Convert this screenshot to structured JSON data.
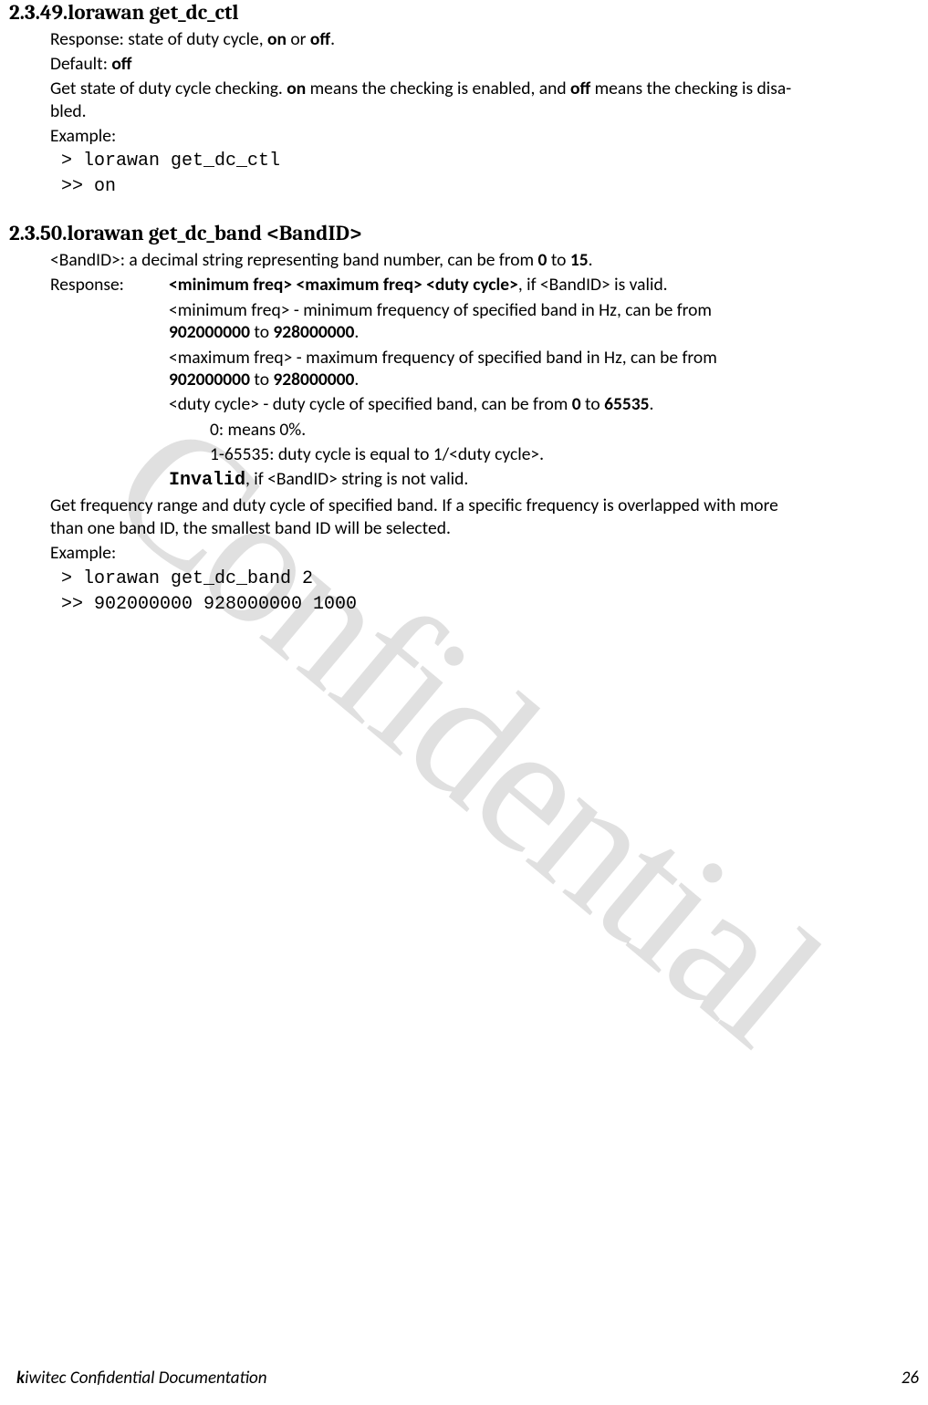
{
  "watermark": "Confidential",
  "sec49": {
    "num": "2.3.49.",
    "title": "lorawan get_dc_ctl",
    "response_label": "Response: state of duty cycle, ",
    "response_on": "on",
    "response_or": " or ",
    "response_off": "off",
    "response_period": ".",
    "default_label": "Default: ",
    "default_val": "off",
    "desc_a": "Get state of duty cycle checking. ",
    "desc_on": "on",
    "desc_b": " means the checking is enabled, and ",
    "desc_off": "off",
    "desc_c": " means the checking is disa-",
    "desc_d": "bled.",
    "example_label": "Example:",
    "ex1": "> lorawan get_dc_ctl",
    "ex2": ">> on"
  },
  "sec50": {
    "num": "2.3.50.",
    "title": "lorawan get_dc_band <BandID>",
    "bandid_a": "<BandID>: a decimal string representing band number, can be from ",
    "bandid_0": "0",
    "bandid_to": " to ",
    "bandid_15": "15",
    "bandid_dot": ".",
    "resp_label": "Response:",
    "resp_main_a": "<minimum freq> <maximum freq> <duty cycle>",
    "resp_main_b": ", if <BandID> is valid.",
    "min_a": "<minimum freq> - minimum frequency of specified band in Hz, can be from",
    "min_b1": "902000000",
    "min_to": " to ",
    "min_b2": "928000000",
    "min_dot": ".",
    "max_a": "<maximum freq> - maximum frequency of specified band in Hz, can be from",
    "max_b1": "902000000",
    "max_to": " to ",
    "max_b2": "928000000",
    "max_dot": ".",
    "duty_a": "<duty cycle> - duty cycle of specified band, can be from ",
    "duty_0": "0",
    "duty_to": " to ",
    "duty_65535": "65535",
    "duty_dot": ".",
    "duty_zero": "0: means 0%.",
    "duty_range": "1-65535: duty cycle is equal to 1/<duty cycle>.",
    "invalid_a": "Invalid",
    "invalid_b": ", if <BandID> string is not valid.",
    "desc2_a": "Get frequency range and duty cycle of specified band. If a specific frequency is overlapped with more",
    "desc2_b": "than one band ID, the smallest band ID will be selected.",
    "example_label": "Example:",
    "ex1": "> lorawan get_dc_band 2",
    "ex2": ">> 902000000 928000000 1000"
  },
  "footer": {
    "brand": "k",
    "rest": "iwitec  Confidential  Documentation",
    "page": "26"
  }
}
